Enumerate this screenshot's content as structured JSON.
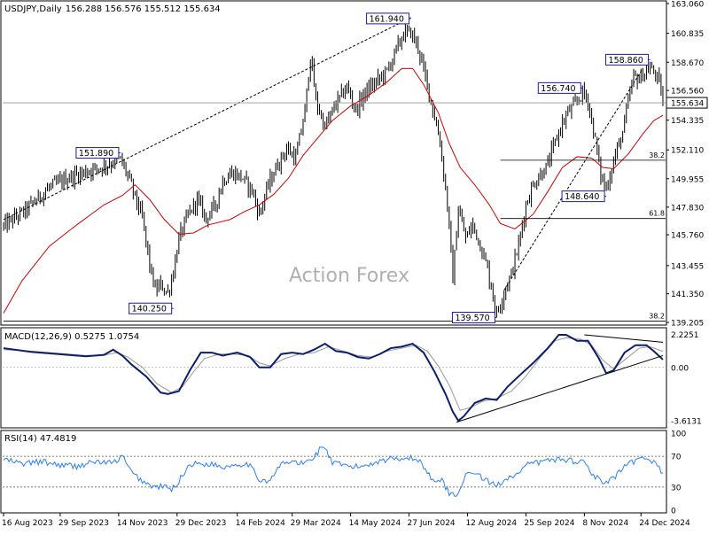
{
  "chart_data": [
    {
      "type": "candlestick",
      "title": "USDJPY,Daily",
      "ohlc_header": "156.288 156.576 155.512 155.634",
      "watermark": "Action Forex",
      "current_price": "155.634",
      "ylim": [
        139.205,
        163.06
      ],
      "price_ticks": [
        "163.060",
        "160.835",
        "158.670",
        "156.560",
        "154.335",
        "152.110",
        "149.955",
        "147.830",
        "145.760",
        "143.455",
        "141.350",
        "139.205"
      ],
      "x_labels": [
        "16 Aug 2023",
        "29 Sep 2023",
        "14 Nov 2023",
        "29 Dec 2023",
        "14 Feb 2024",
        "29 Mar 2024",
        "14 May 2024",
        "27 Jun 2024",
        "12 Aug 2024",
        "25 Sep 2024",
        "8 Nov 2024",
        "24 Dec 2024"
      ],
      "x_label_bars": [
        0,
        31,
        63,
        95,
        128,
        158,
        190,
        222,
        254,
        286,
        318,
        349
      ],
      "total_bars": 362,
      "close_path": [
        [
          0,
          146.4
        ],
        [
          12,
          147.6
        ],
        [
          25,
          149.3
        ],
        [
          35,
          150.0
        ],
        [
          45,
          150.5
        ],
        [
          55,
          150.9
        ],
        [
          64,
          151.4
        ],
        [
          68,
          150.2
        ],
        [
          72,
          148.6
        ],
        [
          76,
          147.0
        ],
        [
          80,
          143.5
        ],
        [
          83,
          141.6
        ],
        [
          86,
          142.0
        ],
        [
          90,
          141.4
        ],
        [
          93,
          143.0
        ],
        [
          96,
          145.5
        ],
        [
          101,
          147.2
        ],
        [
          106,
          148.4
        ],
        [
          111,
          147.0
        ],
        [
          116,
          148.0
        ],
        [
          120,
          149.8
        ],
        [
          125,
          150.4
        ],
        [
          130,
          150.1
        ],
        [
          136,
          149.1
        ],
        [
          140,
          147.3
        ],
        [
          145,
          149.5
        ],
        [
          150,
          151.0
        ],
        [
          155,
          152.2
        ],
        [
          160,
          151.5
        ],
        [
          165,
          155.0
        ],
        [
          168,
          159.2
        ],
        [
          171,
          155.8
        ],
        [
          176,
          153.8
        ],
        [
          182,
          155.6
        ],
        [
          188,
          156.8
        ],
        [
          193,
          155.1
        ],
        [
          198,
          156.4
        ],
        [
          204,
          157.2
        ],
        [
          210,
          158.0
        ],
        [
          215,
          159.6
        ],
        [
          219,
          160.8
        ],
        [
          223,
          160.9
        ],
        [
          227,
          159.8
        ],
        [
          231,
          157.5
        ],
        [
          235,
          155.2
        ],
        [
          239,
          152.7
        ],
        [
          243,
          148.0
        ],
        [
          246,
          142.5
        ],
        [
          249,
          147.7
        ],
        [
          253,
          145.5
        ],
        [
          257,
          146.5
        ],
        [
          261,
          145.0
        ],
        [
          265,
          143.2
        ],
        [
          268,
          141.2
        ],
        [
          270,
          139.8
        ],
        [
          274,
          141.5
        ],
        [
          278,
          142.8
        ],
        [
          282,
          145.0
        ],
        [
          286,
          148.0
        ],
        [
          290,
          149.5
        ],
        [
          294,
          150.3
        ],
        [
          298,
          151.0
        ],
        [
          301,
          152.3
        ],
        [
          305,
          153.8
        ],
        [
          309,
          154.9
        ],
        [
          313,
          155.5
        ],
        [
          317,
          156.4
        ],
        [
          320,
          155.8
        ],
        [
          324,
          152.8
        ],
        [
          327,
          150.2
        ],
        [
          330,
          149.2
        ],
        [
          333,
          150.8
        ],
        [
          336,
          152.2
        ],
        [
          339,
          153.4
        ],
        [
          342,
          155.7
        ],
        [
          345,
          157.6
        ],
        [
          348,
          157.4
        ],
        [
          351,
          157.9
        ],
        [
          354,
          158.2
        ],
        [
          357,
          157.8
        ],
        [
          360,
          156.6
        ],
        [
          361,
          155.63
        ]
      ],
      "ma_path": [
        [
          0,
          139.9
        ],
        [
          10,
          142.3
        ],
        [
          25,
          144.9
        ],
        [
          40,
          146.5
        ],
        [
          55,
          148.0
        ],
        [
          65,
          148.7
        ],
        [
          72,
          149.5
        ],
        [
          80,
          148.4
        ],
        [
          88,
          146.9
        ],
        [
          96,
          145.8
        ],
        [
          104,
          145.9
        ],
        [
          112,
          146.5
        ],
        [
          124,
          146.9
        ],
        [
          132,
          147.5
        ],
        [
          140,
          148.0
        ],
        [
          148,
          148.8
        ],
        [
          156,
          150.0
        ],
        [
          164,
          151.7
        ],
        [
          172,
          153.0
        ],
        [
          180,
          154.3
        ],
        [
          190,
          155.4
        ],
        [
          200,
          156.2
        ],
        [
          210,
          157.2
        ],
        [
          218,
          158.2
        ],
        [
          224,
          158.2
        ],
        [
          230,
          157.0
        ],
        [
          238,
          154.9
        ],
        [
          244,
          152.6
        ],
        [
          250,
          150.8
        ],
        [
          258,
          149.5
        ],
        [
          266,
          148.0
        ],
        [
          272,
          146.6
        ],
        [
          280,
          146.2
        ],
        [
          290,
          147.3
        ],
        [
          298,
          149.0
        ],
        [
          306,
          150.8
        ],
        [
          314,
          151.6
        ],
        [
          322,
          151.5
        ],
        [
          328,
          150.8
        ],
        [
          334,
          150.7
        ],
        [
          342,
          151.8
        ],
        [
          350,
          153.3
        ],
        [
          356,
          154.3
        ],
        [
          361,
          154.7
        ]
      ],
      "annotations": [
        {
          "text": "161.940",
          "bar": 223,
          "price": 161.94,
          "side": "left"
        },
        {
          "text": "151.890",
          "bar": 64,
          "price": 151.89,
          "side": "left"
        },
        {
          "text": "140.250",
          "bar": 93,
          "price": 140.25,
          "side": "left"
        },
        {
          "text": "139.570",
          "bar": 270,
          "price": 139.57,
          "side": "left"
        },
        {
          "text": "156.740",
          "bar": 317,
          "price": 156.74,
          "side": "left"
        },
        {
          "text": "158.860",
          "bar": 354,
          "price": 158.86,
          "side": "left"
        },
        {
          "text": "148.640",
          "bar": 330,
          "price": 148.64,
          "side": "left"
        }
      ],
      "fib_levels": [
        {
          "label": "38.2",
          "price": 151.34,
          "from_bar": 272
        },
        {
          "label": "61.8",
          "price": 146.98,
          "from_bar": 272
        },
        {
          "label": "38.2",
          "price": 139.3,
          "from_bar": 0
        }
      ],
      "trendlines": [
        {
          "from": [
            0,
            146.9
          ],
          "to": [
            223,
            162.0
          ],
          "style": "dashed"
        },
        {
          "from": [
            274,
            141.6
          ],
          "to": [
            350,
            158.2
          ],
          "style": "dashed"
        }
      ]
    },
    {
      "type": "line",
      "title": "MACD(12,26,9) 0.5275 1.0754",
      "ylim": [
        -3.9,
        2.5
      ],
      "ticks": [
        "2.2251",
        "0.00",
        "-3.6131"
      ],
      "macd_path": [
        [
          0,
          1.3
        ],
        [
          15,
          1.05
        ],
        [
          30,
          0.9
        ],
        [
          45,
          0.75
        ],
        [
          55,
          0.85
        ],
        [
          60,
          1.2
        ],
        [
          65,
          0.8
        ],
        [
          70,
          0.2
        ],
        [
          78,
          -0.6
        ],
        [
          86,
          -1.7
        ],
        [
          90,
          -1.8
        ],
        [
          96,
          -1.6
        ],
        [
          102,
          -0.2
        ],
        [
          108,
          1.0
        ],
        [
          114,
          1.0
        ],
        [
          120,
          0.8
        ],
        [
          128,
          1.0
        ],
        [
          135,
          0.7
        ],
        [
          140,
          0.0
        ],
        [
          146,
          0.0
        ],
        [
          152,
          0.9
        ],
        [
          158,
          1.0
        ],
        [
          164,
          0.9
        ],
        [
          170,
          1.2
        ],
        [
          176,
          1.6
        ],
        [
          182,
          1.1
        ],
        [
          188,
          1.0
        ],
        [
          194,
          0.7
        ],
        [
          200,
          0.6
        ],
        [
          206,
          0.9
        ],
        [
          212,
          1.3
        ],
        [
          218,
          1.4
        ],
        [
          224,
          1.6
        ],
        [
          230,
          1.0
        ],
        [
          236,
          -0.3
        ],
        [
          242,
          -1.8
        ],
        [
          246,
          -3.0
        ],
        [
          249,
          -3.6
        ],
        [
          252,
          -3.3
        ],
        [
          258,
          -2.4
        ],
        [
          264,
          -2.1
        ],
        [
          270,
          -2.2
        ],
        [
          276,
          -1.3
        ],
        [
          282,
          -0.6
        ],
        [
          290,
          0.3
        ],
        [
          298,
          1.3
        ],
        [
          304,
          2.2
        ],
        [
          308,
          2.2
        ],
        [
          314,
          1.8
        ],
        [
          320,
          1.8
        ],
        [
          326,
          0.6
        ],
        [
          330,
          -0.4
        ],
        [
          334,
          -0.2
        ],
        [
          340,
          1.0
        ],
        [
          346,
          1.5
        ],
        [
          352,
          1.5
        ],
        [
          356,
          1.1
        ],
        [
          361,
          0.53
        ]
      ],
      "signal_path": [
        [
          0,
          1.2
        ],
        [
          15,
          1.1
        ],
        [
          30,
          0.95
        ],
        [
          45,
          0.8
        ],
        [
          55,
          0.82
        ],
        [
          62,
          1.0
        ],
        [
          68,
          0.7
        ],
        [
          76,
          0.0
        ],
        [
          84,
          -1.1
        ],
        [
          92,
          -1.7
        ],
        [
          98,
          -1.3
        ],
        [
          104,
          -0.3
        ],
        [
          110,
          0.6
        ],
        [
          118,
          0.9
        ],
        [
          126,
          0.9
        ],
        [
          134,
          0.8
        ],
        [
          140,
          0.3
        ],
        [
          146,
          0.1
        ],
        [
          154,
          0.6
        ],
        [
          162,
          0.9
        ],
        [
          170,
          1.0
        ],
        [
          178,
          1.4
        ],
        [
          186,
          1.1
        ],
        [
          194,
          0.8
        ],
        [
          202,
          0.7
        ],
        [
          210,
          1.1
        ],
        [
          218,
          1.3
        ],
        [
          226,
          1.5
        ],
        [
          232,
          1.1
        ],
        [
          238,
          0.1
        ],
        [
          244,
          -1.2
        ],
        [
          250,
          -2.9
        ],
        [
          256,
          -2.7
        ],
        [
          262,
          -2.3
        ],
        [
          270,
          -2.1
        ],
        [
          278,
          -1.6
        ],
        [
          286,
          -0.6
        ],
        [
          294,
          0.7
        ],
        [
          302,
          1.8
        ],
        [
          308,
          2.0
        ],
        [
          316,
          1.9
        ],
        [
          322,
          1.5
        ],
        [
          328,
          0.5
        ],
        [
          334,
          -0.1
        ],
        [
          340,
          0.5
        ],
        [
          348,
          1.3
        ],
        [
          354,
          1.4
        ],
        [
          361,
          1.08
        ]
      ],
      "trendlines": [
        {
          "from": [
            248,
            -3.7
          ],
          "to": [
            361,
            0.8
          ]
        },
        {
          "from": [
            318,
            2.2
          ],
          "to": [
            361,
            1.7
          ]
        }
      ]
    },
    {
      "type": "line",
      "title": "RSI(14) 47.4819",
      "ylim": [
        0,
        100
      ],
      "ticks": [
        "100",
        "70",
        "30",
        "0"
      ],
      "dotted_levels": [
        70,
        30
      ],
      "rsi_path": [
        [
          0,
          66
        ],
        [
          10,
          60
        ],
        [
          20,
          63
        ],
        [
          30,
          59
        ],
        [
          40,
          57
        ],
        [
          50,
          63
        ],
        [
          60,
          61
        ],
        [
          65,
          70
        ],
        [
          70,
          49
        ],
        [
          76,
          38
        ],
        [
          82,
          30
        ],
        [
          88,
          31
        ],
        [
          92,
          26
        ],
        [
          96,
          38
        ],
        [
          102,
          60
        ],
        [
          108,
          60
        ],
        [
          114,
          60
        ],
        [
          120,
          56
        ],
        [
          128,
          60
        ],
        [
          134,
          60
        ],
        [
          140,
          40
        ],
        [
          146,
          38
        ],
        [
          152,
          60
        ],
        [
          158,
          63
        ],
        [
          164,
          60
        ],
        [
          170,
          69
        ],
        [
          175,
          85
        ],
        [
          180,
          61
        ],
        [
          186,
          58
        ],
        [
          192,
          56
        ],
        [
          198,
          58
        ],
        [
          204,
          63
        ],
        [
          210,
          66
        ],
        [
          216,
          68
        ],
        [
          222,
          68
        ],
        [
          228,
          64
        ],
        [
          234,
          42
        ],
        [
          240,
          38
        ],
        [
          244,
          23
        ],
        [
          248,
          18
        ],
        [
          252,
          42
        ],
        [
          258,
          50
        ],
        [
          264,
          38
        ],
        [
          270,
          32
        ],
        [
          276,
          43
        ],
        [
          282,
          47
        ],
        [
          288,
          61
        ],
        [
          294,
          62
        ],
        [
          300,
          66
        ],
        [
          306,
          66
        ],
        [
          312,
          64
        ],
        [
          318,
          63
        ],
        [
          322,
          49
        ],
        [
          328,
          34
        ],
        [
          334,
          41
        ],
        [
          340,
          56
        ],
        [
          346,
          64
        ],
        [
          350,
          66
        ],
        [
          354,
          67
        ],
        [
          358,
          58
        ],
        [
          361,
          47.5
        ]
      ]
    }
  ]
}
